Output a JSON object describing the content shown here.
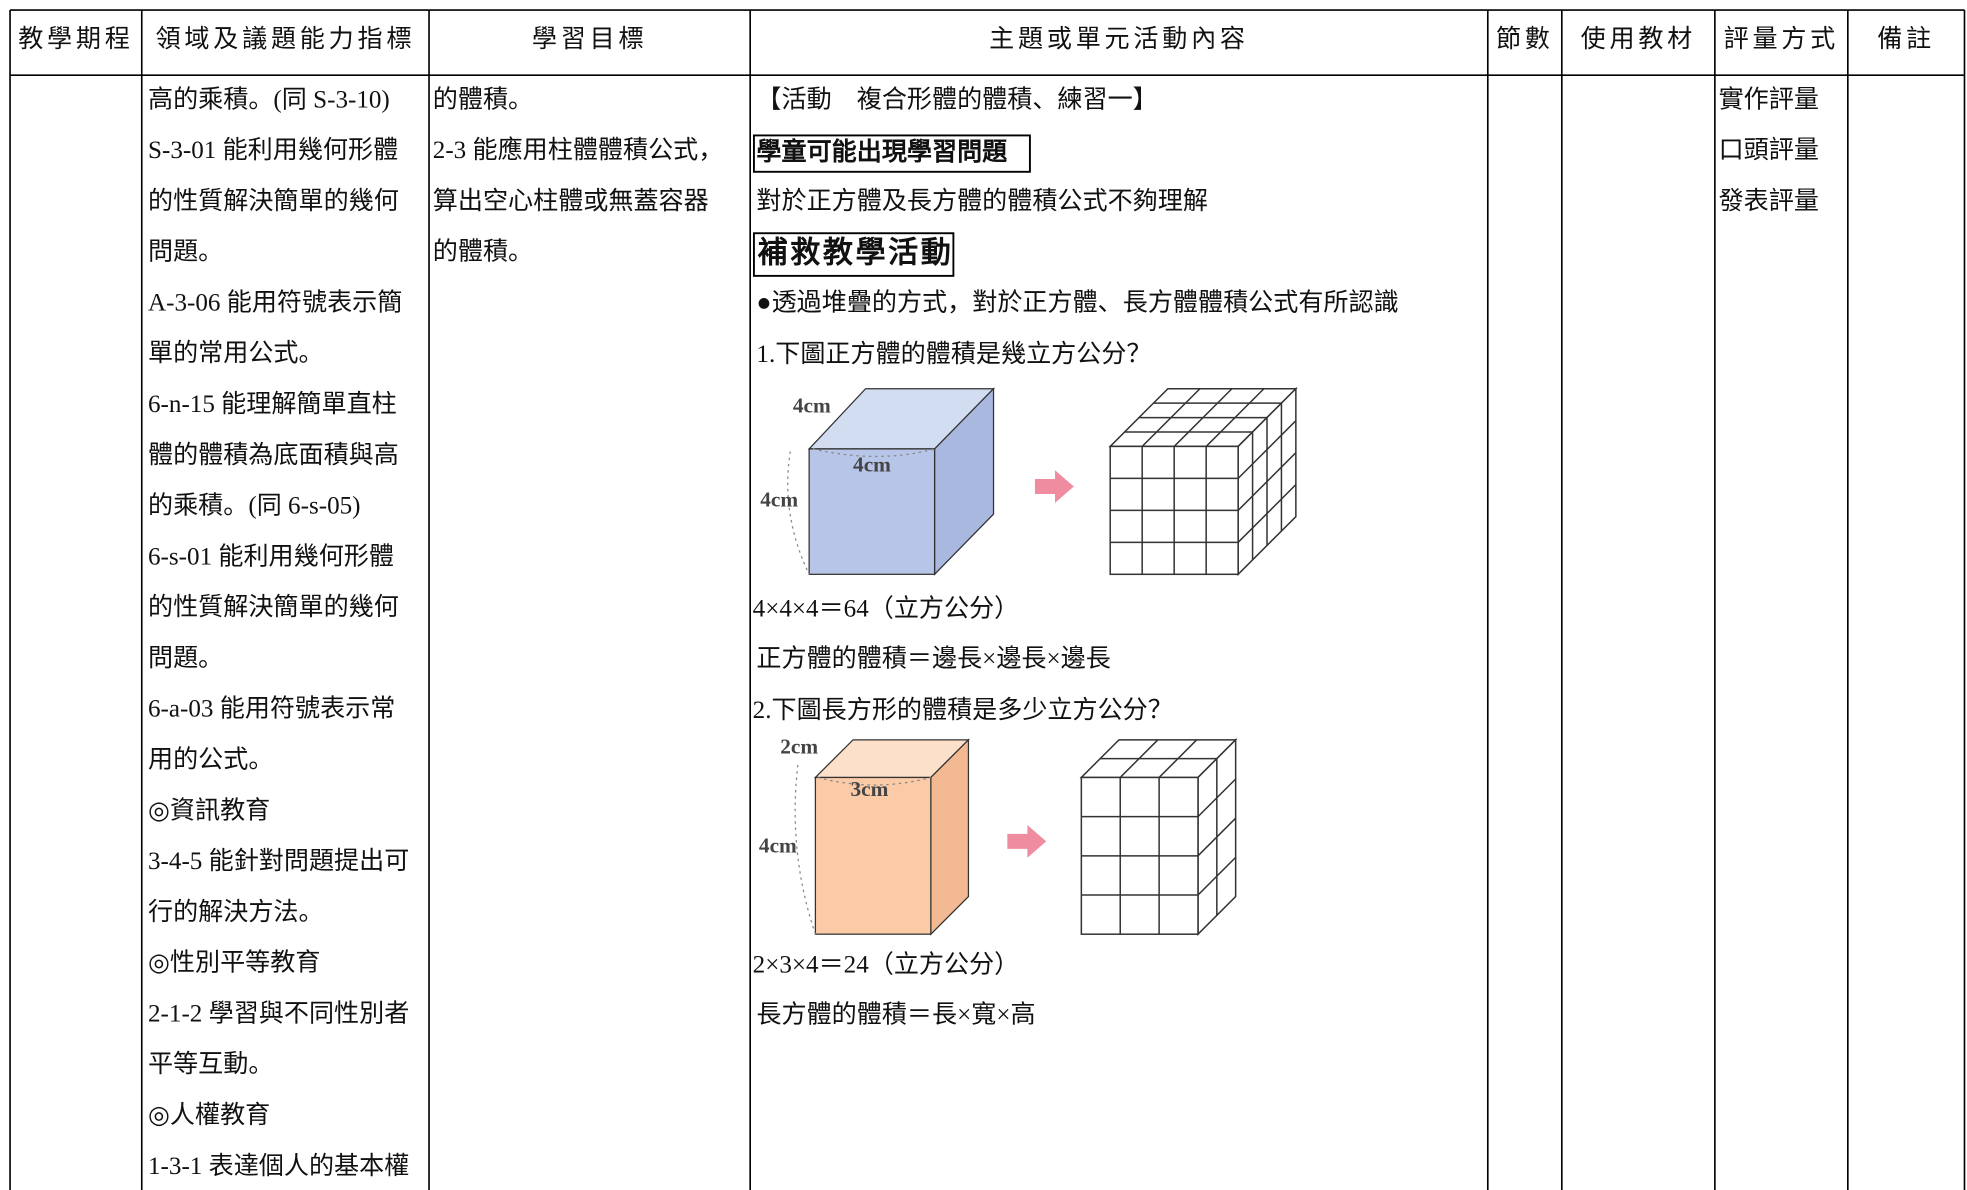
{
  "header": [
    "教學期程",
    "領域及議題能力指標",
    "學習目標",
    "主題或單元活動內容",
    "節數",
    "使用教材",
    "評量方式",
    "備註"
  ],
  "indicators": [
    "高的乘積。(同 S-3-10)",
    "S-3-01 能利用幾何形體",
    "的性質解決簡單的幾何",
    "問題。",
    "A-3-06 能用符號表示簡",
    "單的常用公式。",
    "6-n-15 能理解簡單直柱",
    "體的體積為底面積與高",
    "的乘積。(同 6-s-05)",
    "6-s-01 能利用幾何形體",
    "的性質解決簡單的幾何",
    "問題。",
    "6-a-03 能用符號表示常",
    "用的公式。",
    "◎資訊教育",
    "3-4-5 能針對問題提出可",
    "行的解決方法。",
    "◎性別平等教育",
    "2-1-2 學習與不同性別者",
    "平等互動。",
    "◎人權教育",
    "1-3-1 表達個人的基本權"
  ],
  "objectives": [
    "的體積。",
    "2-3 能應用柱體體積公式，",
    "算出空心柱體或無蓋容器",
    "的體積。"
  ],
  "content": {
    "activity": "【活動　複合形體的體積、練習一】",
    "problem_heading": "學童可能出現學習問題",
    "problem": "對於正方體及長方體的體積公式不夠理解",
    "remedial_heading": "補救教學活動",
    "intro": "●透過堆疊的方式，對於正方體、長方體體積公式有所認識",
    "q1": "1.下圖正方體的體積是幾立方公分？",
    "fig1": {
      "depth": "4cm",
      "width": "4cm",
      "height": "4cm"
    },
    "a1": "4×4×4＝64（立方公分）",
    "f1": "正方體的體積＝邊長×邊長×邊長",
    "q2": "2.下圖長方形的體積是多少立方公分？",
    "fig2": {
      "depth": "2cm",
      "width": "3cm",
      "height": "4cm"
    },
    "a2": "2×3×4＝24（立方公分）",
    "f2": "長方體的體積＝長×寬×高"
  },
  "assessment": [
    "實作評量",
    "口頭評量",
    "發表評量"
  ]
}
